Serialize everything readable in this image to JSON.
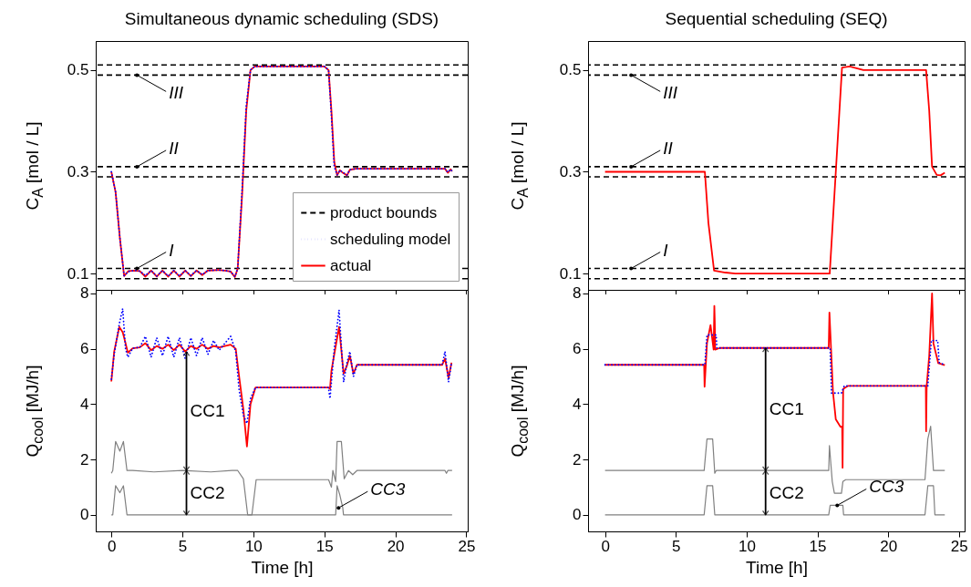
{
  "chart_data": [
    {
      "type": "line",
      "title": "Simultaneous dynamic scheduling (SDS)",
      "ylabel": "C$_{A}$ [mol / L]",
      "xlim": [
        -1.1,
        25.1
      ],
      "xticks": [
        0,
        5,
        10,
        15,
        20,
        25
      ],
      "ylim": [
        0.068,
        0.557
      ],
      "yticks": [
        0.1,
        0.3,
        0.5
      ],
      "tick_labels": "y",
      "legend": "bottom right",
      "grid": false,
      "series": [
        {
          "name": "scheduling model",
          "color": "#0000ff",
          "line_style": "dotted",
          "x": [
            0,
            0.3,
            0.6,
            0.9,
            1.2,
            1.6,
            2.0,
            2.4,
            2.8,
            3.2,
            3.6,
            4.0,
            4.4,
            4.8,
            5.2,
            5.6,
            6.0,
            6.4,
            6.8,
            7.5,
            8.0,
            8.4,
            8.7,
            8.9,
            9.2,
            9.5,
            9.8,
            10.1,
            12,
            15.0,
            15.3,
            15.5,
            15.7,
            15.9,
            16.1,
            16.3,
            16.6,
            16.8,
            17.2,
            20,
            23.5,
            23.7,
            23.9,
            24
          ],
          "values": [
            0.3,
            0.26,
            0.17,
            0.096,
            0.104,
            0.106,
            0.105,
            0.096,
            0.106,
            0.095,
            0.106,
            0.095,
            0.106,
            0.095,
            0.106,
            0.096,
            0.106,
            0.098,
            0.106,
            0.107,
            0.106,
            0.104,
            0.094,
            0.11,
            0.26,
            0.43,
            0.5,
            0.507,
            0.507,
            0.507,
            0.5,
            0.41,
            0.31,
            0.294,
            0.303,
            0.299,
            0.294,
            0.304,
            0.306,
            0.306,
            0.306,
            0.299,
            0.305,
            0.301
          ]
        },
        {
          "name": "actual",
          "color": "#ff0000",
          "line_style": "solid",
          "x": [
            0,
            0.3,
            0.6,
            0.9,
            1.2,
            1.6,
            2.0,
            2.4,
            2.8,
            3.2,
            3.6,
            4.0,
            4.4,
            4.8,
            5.2,
            5.6,
            6.0,
            6.4,
            6.8,
            7.5,
            8.0,
            8.4,
            8.7,
            8.9,
            9.2,
            9.5,
            9.8,
            10.1,
            12,
            15.0,
            15.3,
            15.5,
            15.7,
            15.9,
            16.1,
            16.3,
            16.6,
            16.8,
            17.2,
            20,
            23.5,
            23.7,
            23.9,
            24
          ],
          "values": [
            0.3,
            0.26,
            0.17,
            0.095,
            0.105,
            0.106,
            0.105,
            0.094,
            0.106,
            0.094,
            0.106,
            0.094,
            0.106,
            0.094,
            0.106,
            0.095,
            0.106,
            0.097,
            0.106,
            0.107,
            0.106,
            0.104,
            0.093,
            0.11,
            0.25,
            0.42,
            0.5,
            0.507,
            0.507,
            0.507,
            0.5,
            0.42,
            0.32,
            0.293,
            0.303,
            0.298,
            0.293,
            0.304,
            0.306,
            0.306,
            0.306,
            0.298,
            0.305,
            0.301
          ]
        }
      ],
      "ref_lines": [
        {
          "axis": "y",
          "value": 0.51,
          "label": "product bounds",
          "color": "#000000",
          "line_style": "dashed"
        },
        {
          "axis": "y",
          "value": 0.49,
          "color": "#000000",
          "line_style": "dashed"
        },
        {
          "axis": "y",
          "value": 0.31,
          "color": "#000000",
          "line_style": "dashed"
        },
        {
          "axis": "y",
          "value": 0.29,
          "color": "#000000",
          "line_style": "dashed"
        },
        {
          "axis": "y",
          "value": 0.11,
          "color": "#000000",
          "line_style": "dashed"
        },
        {
          "axis": "y",
          "value": 0.09,
          "color": "#000000",
          "line_style": "dashed"
        }
      ],
      "annotations": [
        {
          "text": "III",
          "x": 1.8,
          "y": 0.49
        },
        {
          "text": "II",
          "x": 1.8,
          "y": 0.31
        },
        {
          "text": "I",
          "x": 1.8,
          "y": 0.11
        }
      ]
    },
    {
      "type": "line",
      "title": "Sequential scheduling (SEQ)",
      "ylabel": "C$_{A}$ [mol / L]",
      "xlim": [
        -1.2,
        25.4
      ],
      "xticks": [
        0,
        5,
        10,
        15,
        20,
        25
      ],
      "ylim": [
        0.068,
        0.557
      ],
      "yticks": [
        0.1,
        0.3,
        0.5
      ],
      "tick_labels": "y",
      "grid": false,
      "series": [
        {
          "color": "#ff0000",
          "line_style": "solid",
          "x": [
            0,
            7.05,
            7.3,
            7.7,
            8.5,
            9.2,
            15.87,
            16.3,
            16.74,
            17.28,
            18.25,
            22.68,
            22.9,
            23.1,
            23.43,
            23.7,
            24
          ],
          "values": [
            0.3,
            0.3,
            0.2,
            0.106,
            0.102,
            0.1,
            0.1,
            0.3,
            0.505,
            0.507,
            0.5,
            0.5,
            0.42,
            0.31,
            0.294,
            0.293,
            0.298
          ]
        }
      ],
      "ref_lines": [
        {
          "axis": "y",
          "value": 0.51,
          "color": "#000000",
          "line_style": "dashed"
        },
        {
          "axis": "y",
          "value": 0.49,
          "color": "#000000",
          "line_style": "dashed"
        },
        {
          "axis": "y",
          "value": 0.31,
          "color": "#000000",
          "line_style": "dashed"
        },
        {
          "axis": "y",
          "value": 0.29,
          "color": "#000000",
          "line_style": "dashed"
        },
        {
          "axis": "y",
          "value": 0.11,
          "color": "#000000",
          "line_style": "dashed"
        },
        {
          "axis": "y",
          "value": 0.09,
          "color": "#000000",
          "line_style": "dashed"
        }
      ],
      "annotations": [
        {
          "text": "III",
          "x": 1.84,
          "y": 0.49
        },
        {
          "text": "II",
          "x": 1.84,
          "y": 0.31
        },
        {
          "text": "I",
          "x": 1.84,
          "y": 0.11
        }
      ]
    },
    {
      "type": "line",
      "xlabel": "Time [h]",
      "ylabel": "Q$_{cool}$ [MJ/h]",
      "xlim": [
        -1.1,
        25.1
      ],
      "xticks": [
        0,
        5,
        10,
        15,
        20,
        25
      ],
      "ylim": [
        -0.6,
        8.13
      ],
      "yticks": [
        0,
        2,
        4,
        6,
        8
      ],
      "grid": false,
      "series": [
        {
          "color": "#0000ff",
          "line_style": "dotted",
          "x": [
            0,
            0.2,
            0.56,
            0.8,
            1.0,
            1.16,
            1.5,
            2.0,
            2.4,
            2.8,
            3.2,
            3.6,
            4.0,
            4.4,
            4.8,
            5.2,
            5.6,
            6.0,
            6.4,
            6.8,
            7.2,
            7.6,
            8.0,
            8.4,
            8.76,
            9.0,
            9.3,
            9.55,
            9.8,
            10.15,
            12,
            15.29,
            15.4,
            15.5,
            15.7,
            16.04,
            16.36,
            16.6,
            16.8,
            17.05,
            17.3,
            20,
            23.3,
            23.5,
            23.75,
            23.96
          ],
          "values": [
            4.9,
            5.8,
            6.9,
            7.45,
            6.0,
            5.7,
            6.02,
            6.05,
            6.45,
            5.7,
            6.4,
            5.75,
            6.45,
            5.7,
            6.4,
            5.65,
            6.4,
            5.75,
            6.4,
            5.8,
            6.3,
            5.95,
            6.2,
            6.45,
            5.9,
            4.5,
            3.6,
            3.3,
            4.2,
            4.6,
            4.6,
            4.6,
            4.2,
            4.8,
            6.0,
            7.4,
            4.8,
            5.5,
            5.9,
            5.0,
            5.42,
            5.42,
            5.42,
            5.9,
            4.8,
            5.5
          ]
        },
        {
          "color": "#ff0000",
          "line_style": "solid",
          "x": [
            0,
            0.2,
            0.56,
            0.8,
            1.0,
            1.16,
            1.5,
            2.0,
            2.4,
            2.8,
            3.2,
            3.6,
            4.0,
            4.4,
            4.8,
            5.2,
            5.6,
            6.0,
            6.4,
            6.8,
            7.2,
            7.6,
            8.0,
            8.4,
            8.76,
            9.0,
            9.3,
            9.55,
            9.8,
            10.15,
            12,
            15.29,
            15.4,
            15.5,
            15.7,
            16.04,
            16.36,
            16.6,
            16.8,
            17.05,
            17.3,
            20,
            23.3,
            23.5,
            23.75,
            23.96
          ],
          "values": [
            4.82,
            5.9,
            6.79,
            6.6,
            6.2,
            5.86,
            6.02,
            6.05,
            6.2,
            5.95,
            6.1,
            6.0,
            6.15,
            5.95,
            6.15,
            5.9,
            6.1,
            6.0,
            6.15,
            6.0,
            6.1,
            6.05,
            6.1,
            6.15,
            6.0,
            5.0,
            3.8,
            2.47,
            4.0,
            4.6,
            4.6,
            4.6,
            4.55,
            5.2,
            5.8,
            6.79,
            5.1,
            5.4,
            5.75,
            5.1,
            5.42,
            5.42,
            5.42,
            5.65,
            4.95,
            5.5
          ]
        },
        {
          "color": "#808080",
          "line_style": "solid",
          "x": [
            0,
            0.1,
            0.3,
            0.6,
            0.85,
            1.1,
            1.5,
            3,
            5,
            7,
            8.5,
            8.9,
            9.3,
            9.6,
            9.9,
            10.2,
            12,
            15.3,
            15.5,
            15.6,
            15.8,
            15.9,
            16.2,
            16.4,
            16.7,
            17,
            17.3,
            20,
            23.5,
            23.6,
            23.7,
            24
          ],
          "values": [
            1.5,
            1.6,
            2.65,
            2.3,
            2.65,
            1.6,
            1.6,
            1.55,
            1.6,
            1.55,
            1.6,
            1.6,
            1.3,
            0,
            0,
            1.27,
            1.27,
            1.27,
            1.0,
            1.6,
            1.2,
            2.65,
            2.65,
            1.3,
            1.6,
            1.45,
            1.6,
            1.6,
            1.6,
            1.5,
            1.6,
            1.6
          ]
        },
        {
          "color": "#808080",
          "line_style": "solid",
          "x": [
            0,
            0.1,
            0.3,
            0.6,
            0.85,
            1.1,
            15.8,
            15.9,
            16.1,
            16.3,
            16.35,
            24
          ],
          "values": [
            0,
            0,
            1.05,
            0.8,
            1.05,
            0,
            0,
            1.05,
            0.7,
            0.25,
            0,
            0
          ]
        }
      ],
      "annotations": [
        {
          "text": "CC1",
          "x": 5.29,
          "y": 5.89
        },
        {
          "text": "CC2",
          "x": 5.29,
          "y": 1.6
        },
        {
          "text": "CC3",
          "x": 16.0,
          "y": 0.25
        }
      ]
    },
    {
      "type": "line",
      "xlabel": "Time [h]",
      "ylabel": "Q$_{cool}$ [MJ/h]",
      "xlim": [
        -1.2,
        25.4
      ],
      "xticks": [
        0,
        5,
        10,
        15,
        20,
        25
      ],
      "ylim": [
        -0.6,
        8.13
      ],
      "yticks": [
        0,
        2,
        4,
        6,
        8
      ],
      "grid": false,
      "series": [
        {
          "color": "#0000ff",
          "line_style": "dotted",
          "x": [
            0,
            7.05,
            7.2,
            7.85,
            7.9,
            15.9,
            16.0,
            16.7,
            16.9,
            22.8,
            23.05,
            23.5,
            23.6,
            24
          ],
          "values": [
            5.42,
            5.42,
            6.5,
            6.5,
            6.03,
            6.03,
            4.4,
            4.4,
            4.66,
            4.66,
            6.3,
            6.3,
            5.5,
            5.42
          ]
        },
        {
          "color": "#ff0000",
          "line_style": "solid",
          "x": [
            0,
            7.0,
            7.03,
            7.2,
            7.45,
            7.67,
            7.72,
            7.75,
            7.78,
            8.1,
            15.8,
            15.85,
            16.1,
            16.3,
            16.63,
            16.75,
            16.78,
            16.82,
            17.17,
            22.66,
            22.68,
            22.72,
            22.9,
            23.1,
            23.2,
            23.54,
            24
          ],
          "values": [
            5.42,
            5.42,
            4.63,
            6.2,
            6.86,
            5.97,
            7.55,
            7.0,
            5.97,
            6.03,
            6.03,
            7.31,
            4.44,
            3.45,
            3.18,
            3.18,
            1.7,
            4.55,
            4.66,
            4.66,
            3.02,
            4.66,
            5.75,
            8.0,
            6.19,
            5.48,
            5.41
          ]
        },
        {
          "color": "#808080",
          "line_style": "solid",
          "x": [
            0,
            7.0,
            7.2,
            7.6,
            7.75,
            7.85,
            15.8,
            15.85,
            16.05,
            16.2,
            16.7,
            16.8,
            17.0,
            22.6,
            22.8,
            23.0,
            23.2,
            24
          ],
          "values": [
            1.6,
            1.6,
            2.74,
            2.74,
            1.5,
            1.6,
            1.6,
            2.5,
            1.2,
            0.78,
            0.78,
            1.2,
            1.27,
            1.27,
            2.74,
            3.2,
            1.6,
            1.6
          ]
        },
        {
          "color": "#808080",
          "line_style": "solid",
          "x": [
            0,
            7.0,
            7.2,
            7.6,
            7.75,
            15.8,
            15.9,
            16.8,
            16.85,
            22.6,
            22.8,
            23.2,
            23.3,
            24
          ],
          "values": [
            0,
            0,
            1.05,
            1.05,
            0,
            0,
            0.34,
            0.34,
            0,
            0,
            1.05,
            1.05,
            0,
            0
          ]
        }
      ],
      "annotations": [
        {
          "text": "CC1",
          "x": 11.34,
          "y": 6.03
        },
        {
          "text": "CC2",
          "x": 11.34,
          "y": 1.6
        },
        {
          "text": "CC3",
          "x": 16.4,
          "y": 0.34
        }
      ]
    }
  ]
}
